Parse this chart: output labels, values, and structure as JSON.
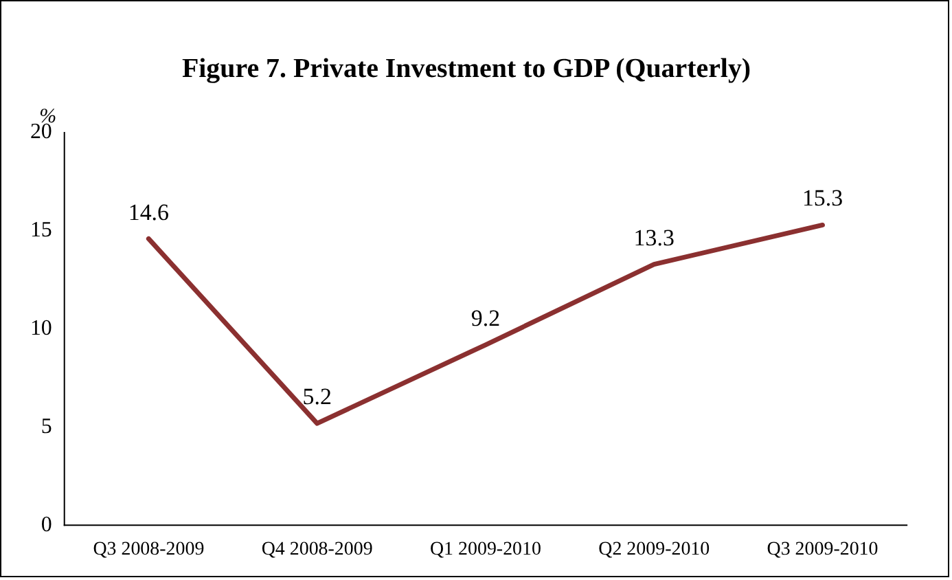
{
  "chart_data": {
    "type": "line",
    "title": "Figure 7. Private Investment to GDP (Quarterly)",
    "ylabel": "%",
    "categories": [
      "Q3 2008-2009",
      "Q4 2008-2009",
      "Q1 2009-2010",
      "Q2 2009-2010",
      "Q3 2009-2010"
    ],
    "series": [
      {
        "color": "#8b3030",
        "values": [
          14.6,
          5.2,
          9.2,
          13.3,
          15.3
        ]
      }
    ],
    "ylim": [
      0,
      20
    ],
    "yticks": [
      0,
      5,
      10,
      15,
      20
    ],
    "grid": false,
    "legend": false,
    "marker": "none",
    "line_style": "solid",
    "data_labels": true
  }
}
